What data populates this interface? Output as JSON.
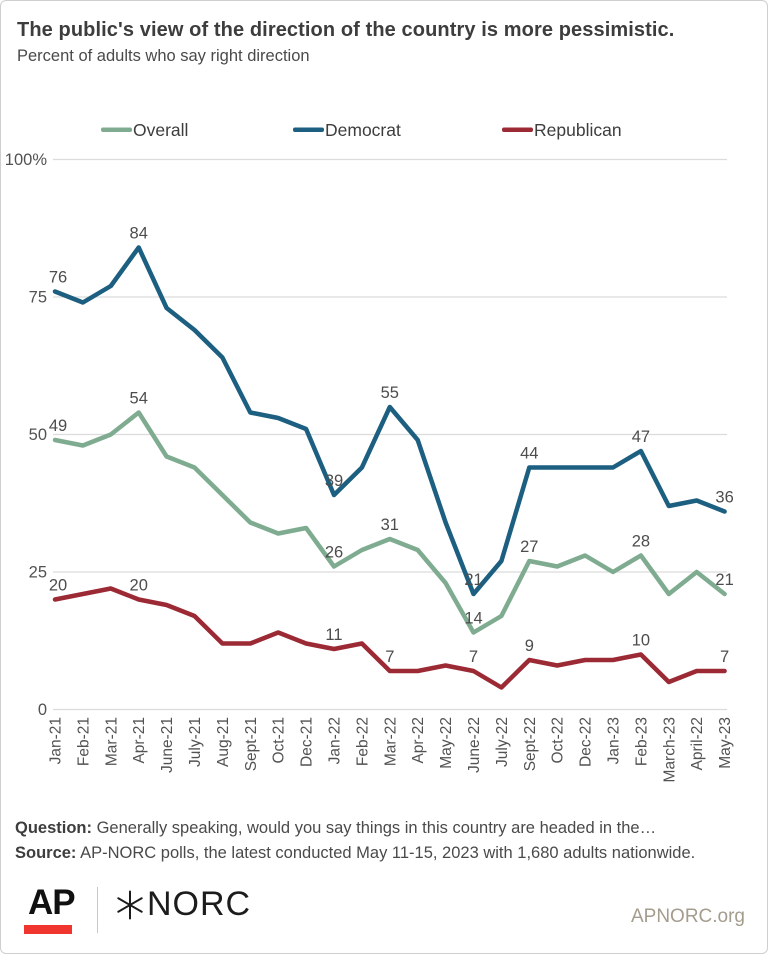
{
  "header": {
    "title": "The public's view of the direction of the country is more pessimistic.",
    "subtitle": "Percent of adults who say right direction"
  },
  "chart_data": {
    "type": "line",
    "title": "The public's view of the direction of the country is more pessimistic.",
    "subtitle": "Percent of adults who say right direction",
    "x": [
      "Jan-21",
      "Feb-21",
      "Mar-21",
      "Apr-21",
      "June-21",
      "July-21",
      "Aug-21",
      "Sept-21",
      "Oct-21",
      "Dec-21",
      "Jan-22",
      "Feb-22",
      "Mar-22",
      "Apr-22",
      "May-22",
      "June-22",
      "July-22",
      "Sept-22",
      "Oct-22",
      "Dec-22",
      "Jan-23",
      "Feb-23",
      "March-23",
      "April-22",
      "May-23"
    ],
    "series": [
      {
        "name": "Overall",
        "color": "#7fac90",
        "values": [
          49,
          48,
          50,
          54,
          46,
          44,
          39,
          34,
          32,
          33,
          26,
          29,
          31,
          29,
          23,
          14,
          17,
          27,
          26,
          28,
          25,
          28,
          21,
          25,
          21
        ]
      },
      {
        "name": "Democrat",
        "color": "#1c5f80",
        "values": [
          76,
          74,
          77,
          84,
          73,
          69,
          64,
          54,
          53,
          51,
          39,
          44,
          55,
          49,
          34,
          21,
          27,
          44,
          44,
          44,
          44,
          47,
          37,
          38,
          36
        ]
      },
      {
        "name": "Republican",
        "color": "#9c2a35",
        "values": [
          20,
          21,
          22,
          20,
          19,
          17,
          12,
          12,
          14,
          12,
          11,
          12,
          7,
          7,
          8,
          7,
          4,
          9,
          8,
          9,
          9,
          10,
          5,
          7,
          7
        ]
      }
    ],
    "labeled_indices": [
      0,
      3,
      10,
      12,
      15,
      17,
      21,
      24
    ],
    "y_ticks": [
      {
        "label": "100%",
        "value": 100
      },
      {
        "label": "75",
        "value": 75
      },
      {
        "label": "50",
        "value": 50
      },
      {
        "label": "25",
        "value": 25
      },
      {
        "label": "0",
        "value": 0
      }
    ],
    "ylim": [
      0,
      100
    ],
    "grid": "horizontal",
    "legend_position": "top"
  },
  "footer": {
    "question_label": "Question:",
    "question_text": " Generally speaking, would you say things in this country are headed in the…",
    "source_label": "Source:",
    "source_text": " AP-NORC polls, the latest conducted May 11-15, 2023 with 1,680 adults nationwide.",
    "ap_logo": "AP",
    "norc_logo": "NORC",
    "site": "APNORC.org"
  },
  "colors": {
    "overall": "#7fac90",
    "democrat": "#1c5f80",
    "republican": "#9c2a35",
    "gridline": "#dcdcdc",
    "axis_text": "#525252",
    "data_label": "#4d4d4d",
    "title_text": "#3d3d3d",
    "ap_red": "#f0352e",
    "site_text": "#a49c8d"
  }
}
